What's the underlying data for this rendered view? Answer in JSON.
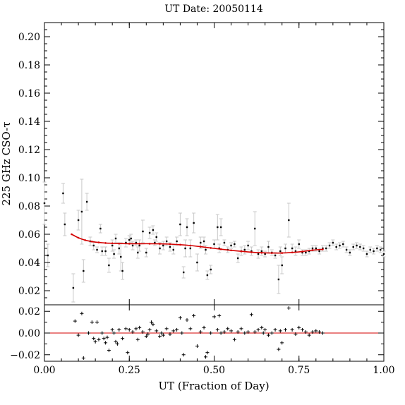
{
  "chart_data": {
    "type": "scatter",
    "title": "UT Date: 20050114",
    "xlabel": "UT (Fraction of Day)",
    "ylabel": "225 GHz CSO-τ",
    "xlim": [
      0.0,
      1.0
    ],
    "xticks": [
      "0.00",
      "0.25",
      "0.50",
      "0.75",
      "1.00"
    ],
    "top_panel": {
      "ylim": [
        0.01,
        0.21
      ],
      "yticks": [
        "0.02",
        "0.04",
        "0.06",
        "0.08",
        "0.10",
        "0.12",
        "0.14",
        "0.16",
        "0.18",
        "0.20"
      ],
      "series": [
        {
          "kind": "points-with-errorbars",
          "color": "#000000",
          "errorbar_color": "#c8c8c8",
          "x": [
            0.0,
            0.01,
            0.055,
            0.06,
            0.085,
            0.1,
            0.11,
            0.115,
            0.125,
            0.135,
            0.145,
            0.155,
            0.165,
            0.17,
            0.18,
            0.19,
            0.2,
            0.205,
            0.21,
            0.22,
            0.225,
            0.23,
            0.24,
            0.25,
            0.255,
            0.26,
            0.27,
            0.275,
            0.28,
            0.29,
            0.3,
            0.31,
            0.32,
            0.325,
            0.33,
            0.34,
            0.35,
            0.36,
            0.37,
            0.38,
            0.39,
            0.4,
            0.41,
            0.415,
            0.42,
            0.43,
            0.44,
            0.45,
            0.46,
            0.47,
            0.475,
            0.48,
            0.49,
            0.5,
            0.51,
            0.515,
            0.52,
            0.53,
            0.54,
            0.55,
            0.56,
            0.57,
            0.58,
            0.59,
            0.6,
            0.61,
            0.62,
            0.63,
            0.64,
            0.65,
            0.66,
            0.67,
            0.68,
            0.69,
            0.695,
            0.7,
            0.71,
            0.72,
            0.73,
            0.74,
            0.75,
            0.76,
            0.77,
            0.78,
            0.79,
            0.8,
            0.81,
            0.82,
            0.83,
            0.84,
            0.85,
            0.86,
            0.87,
            0.88,
            0.89,
            0.9,
            0.91,
            0.92,
            0.93,
            0.94,
            0.95,
            0.96,
            0.97,
            0.98,
            0.99,
            1.0
          ],
          "y": [
            0.082,
            0.045,
            0.089,
            0.067,
            0.022,
            0.07,
            0.076,
            0.034,
            0.083,
            0.055,
            0.052,
            0.049,
            0.064,
            0.048,
            0.048,
            0.038,
            0.052,
            0.046,
            0.057,
            0.05,
            0.044,
            0.034,
            0.054,
            0.056,
            0.057,
            0.052,
            0.054,
            0.047,
            0.052,
            0.062,
            0.047,
            0.061,
            0.063,
            0.054,
            0.058,
            0.05,
            0.052,
            0.055,
            0.051,
            0.049,
            0.055,
            0.067,
            0.033,
            0.05,
            0.065,
            0.05,
            0.068,
            0.04,
            0.054,
            0.055,
            0.049,
            0.031,
            0.035,
            0.053,
            0.065,
            0.05,
            0.065,
            0.054,
            0.049,
            0.052,
            0.053,
            0.043,
            0.048,
            0.049,
            0.052,
            0.048,
            0.064,
            0.046,
            0.048,
            0.046,
            0.051,
            0.047,
            0.045,
            0.028,
            0.048,
            0.038,
            0.05,
            0.07,
            0.05,
            0.048,
            0.053,
            0.047,
            0.047,
            0.048,
            0.05,
            0.05,
            0.048,
            0.05,
            0.05,
            0.052,
            0.054,
            0.051,
            0.052,
            0.053,
            0.049,
            0.047,
            0.051,
            0.052,
            0.051,
            0.05,
            0.046,
            0.049,
            0.048,
            0.05,
            0.049,
            0.046
          ],
          "yerr": [
            0.015,
            0.008,
            0.007,
            0.008,
            0.01,
            0.007,
            0.023,
            0.008,
            0.006,
            0.003,
            0.003,
            0.002,
            0.003,
            0.003,
            0.003,
            0.005,
            0.004,
            0.003,
            0.003,
            0.004,
            0.01,
            0.006,
            0.003,
            0.003,
            0.003,
            0.003,
            0.002,
            0.004,
            0.004,
            0.008,
            0.003,
            0.004,
            0.003,
            0.002,
            0.003,
            0.004,
            0.003,
            0.003,
            0.003,
            0.003,
            0.003,
            0.008,
            0.004,
            0.006,
            0.006,
            0.006,
            0.007,
            0.006,
            0.004,
            0.003,
            0.003,
            0.003,
            0.003,
            0.003,
            0.009,
            0.003,
            0.006,
            0.002,
            0.002,
            0.002,
            0.002,
            0.003,
            0.003,
            0.003,
            0.003,
            0.003,
            0.012,
            0.003,
            0.003,
            0.002,
            0.004,
            0.002,
            0.002,
            0.01,
            0.003,
            0.006,
            0.003,
            0.012,
            0.003,
            0.003,
            0.003,
            0.002,
            0.002,
            0.002,
            0.002,
            0.002,
            0.002,
            0.002,
            0.002,
            0.002,
            0.002,
            0.002,
            0.002,
            0.002,
            0.002,
            0.002,
            0.002,
            0.002,
            0.002,
            0.002,
            0.002,
            0.002,
            0.002,
            0.002,
            0.002,
            0.002
          ]
        },
        {
          "kind": "fit-line",
          "color": "#d40000",
          "x": [
            0.08,
            0.1,
            0.12,
            0.14,
            0.16,
            0.18,
            0.2,
            0.22,
            0.25,
            0.28,
            0.31,
            0.34,
            0.37,
            0.4,
            0.43,
            0.46,
            0.49,
            0.52,
            0.55,
            0.58,
            0.61,
            0.64,
            0.67,
            0.7,
            0.73,
            0.76,
            0.79,
            0.82
          ],
          "y": [
            0.06,
            0.0575,
            0.0558,
            0.0548,
            0.0542,
            0.0538,
            0.0536,
            0.0534,
            0.0533,
            0.0533,
            0.0533,
            0.0532,
            0.053,
            0.0526,
            0.052,
            0.0512,
            0.0503,
            0.0494,
            0.0486,
            0.0479,
            0.0473,
            0.0469,
            0.0467,
            0.0467,
            0.0471,
            0.0478,
            0.0487,
            0.0493
          ]
        }
      ]
    },
    "bottom_panel": {
      "ylim": [
        -0.026,
        0.026
      ],
      "yticks": [
        "0.02",
        "0.00",
        "−0.02"
      ],
      "zero_line_color": "#d40000",
      "residuals": {
        "marker": "plus",
        "color": "#000000",
        "x": [
          0.09,
          0.1,
          0.11,
          0.115,
          0.13,
          0.14,
          0.145,
          0.15,
          0.155,
          0.16,
          0.17,
          0.175,
          0.18,
          0.185,
          0.19,
          0.2,
          0.205,
          0.21,
          0.215,
          0.22,
          0.23,
          0.24,
          0.245,
          0.25,
          0.26,
          0.27,
          0.275,
          0.28,
          0.29,
          0.3,
          0.305,
          0.31,
          0.315,
          0.32,
          0.33,
          0.34,
          0.345,
          0.35,
          0.36,
          0.37,
          0.38,
          0.39,
          0.4,
          0.405,
          0.41,
          0.42,
          0.43,
          0.44,
          0.45,
          0.46,
          0.47,
          0.475,
          0.48,
          0.49,
          0.5,
          0.51,
          0.515,
          0.52,
          0.53,
          0.54,
          0.55,
          0.56,
          0.57,
          0.58,
          0.59,
          0.6,
          0.61,
          0.62,
          0.63,
          0.64,
          0.645,
          0.65,
          0.66,
          0.67,
          0.68,
          0.69,
          0.695,
          0.7,
          0.71,
          0.72,
          0.73,
          0.74,
          0.75,
          0.76,
          0.77,
          0.78,
          0.79,
          0.8,
          0.81,
          0.82
        ],
        "y": [
          0.011,
          -0.002,
          0.018,
          -0.023,
          0.0,
          0.01,
          -0.005,
          -0.008,
          0.01,
          -0.006,
          0.0,
          -0.005,
          -0.009,
          -0.004,
          -0.016,
          0.003,
          0.0,
          -0.008,
          -0.01,
          0.003,
          -0.005,
          0.004,
          -0.018,
          0.003,
          0.001,
          0.004,
          -0.006,
          0.005,
          0.001,
          -0.003,
          -0.001,
          0.003,
          0.01,
          0.008,
          0.002,
          -0.003,
          0.0,
          -0.002,
          0.004,
          -0.001,
          0.002,
          0.003,
          0.014,
          0.0,
          -0.02,
          0.012,
          0.004,
          0.016,
          -0.012,
          0.001,
          0.005,
          -0.022,
          -0.018,
          0.0,
          0.015,
          0.003,
          0.016,
          0.0,
          0.001,
          0.004,
          0.002,
          -0.006,
          0.001,
          0.004,
          0.0,
          0.001,
          0.017,
          0.001,
          0.003,
          0.005,
          0.0,
          0.003,
          -0.002,
          0.0,
          0.003,
          -0.015,
          0.002,
          -0.009,
          0.003,
          0.023,
          0.003,
          -0.001,
          0.005,
          0.003,
          0.001,
          -0.002,
          0.001,
          0.002,
          0.001,
          0.0
        ]
      }
    }
  }
}
